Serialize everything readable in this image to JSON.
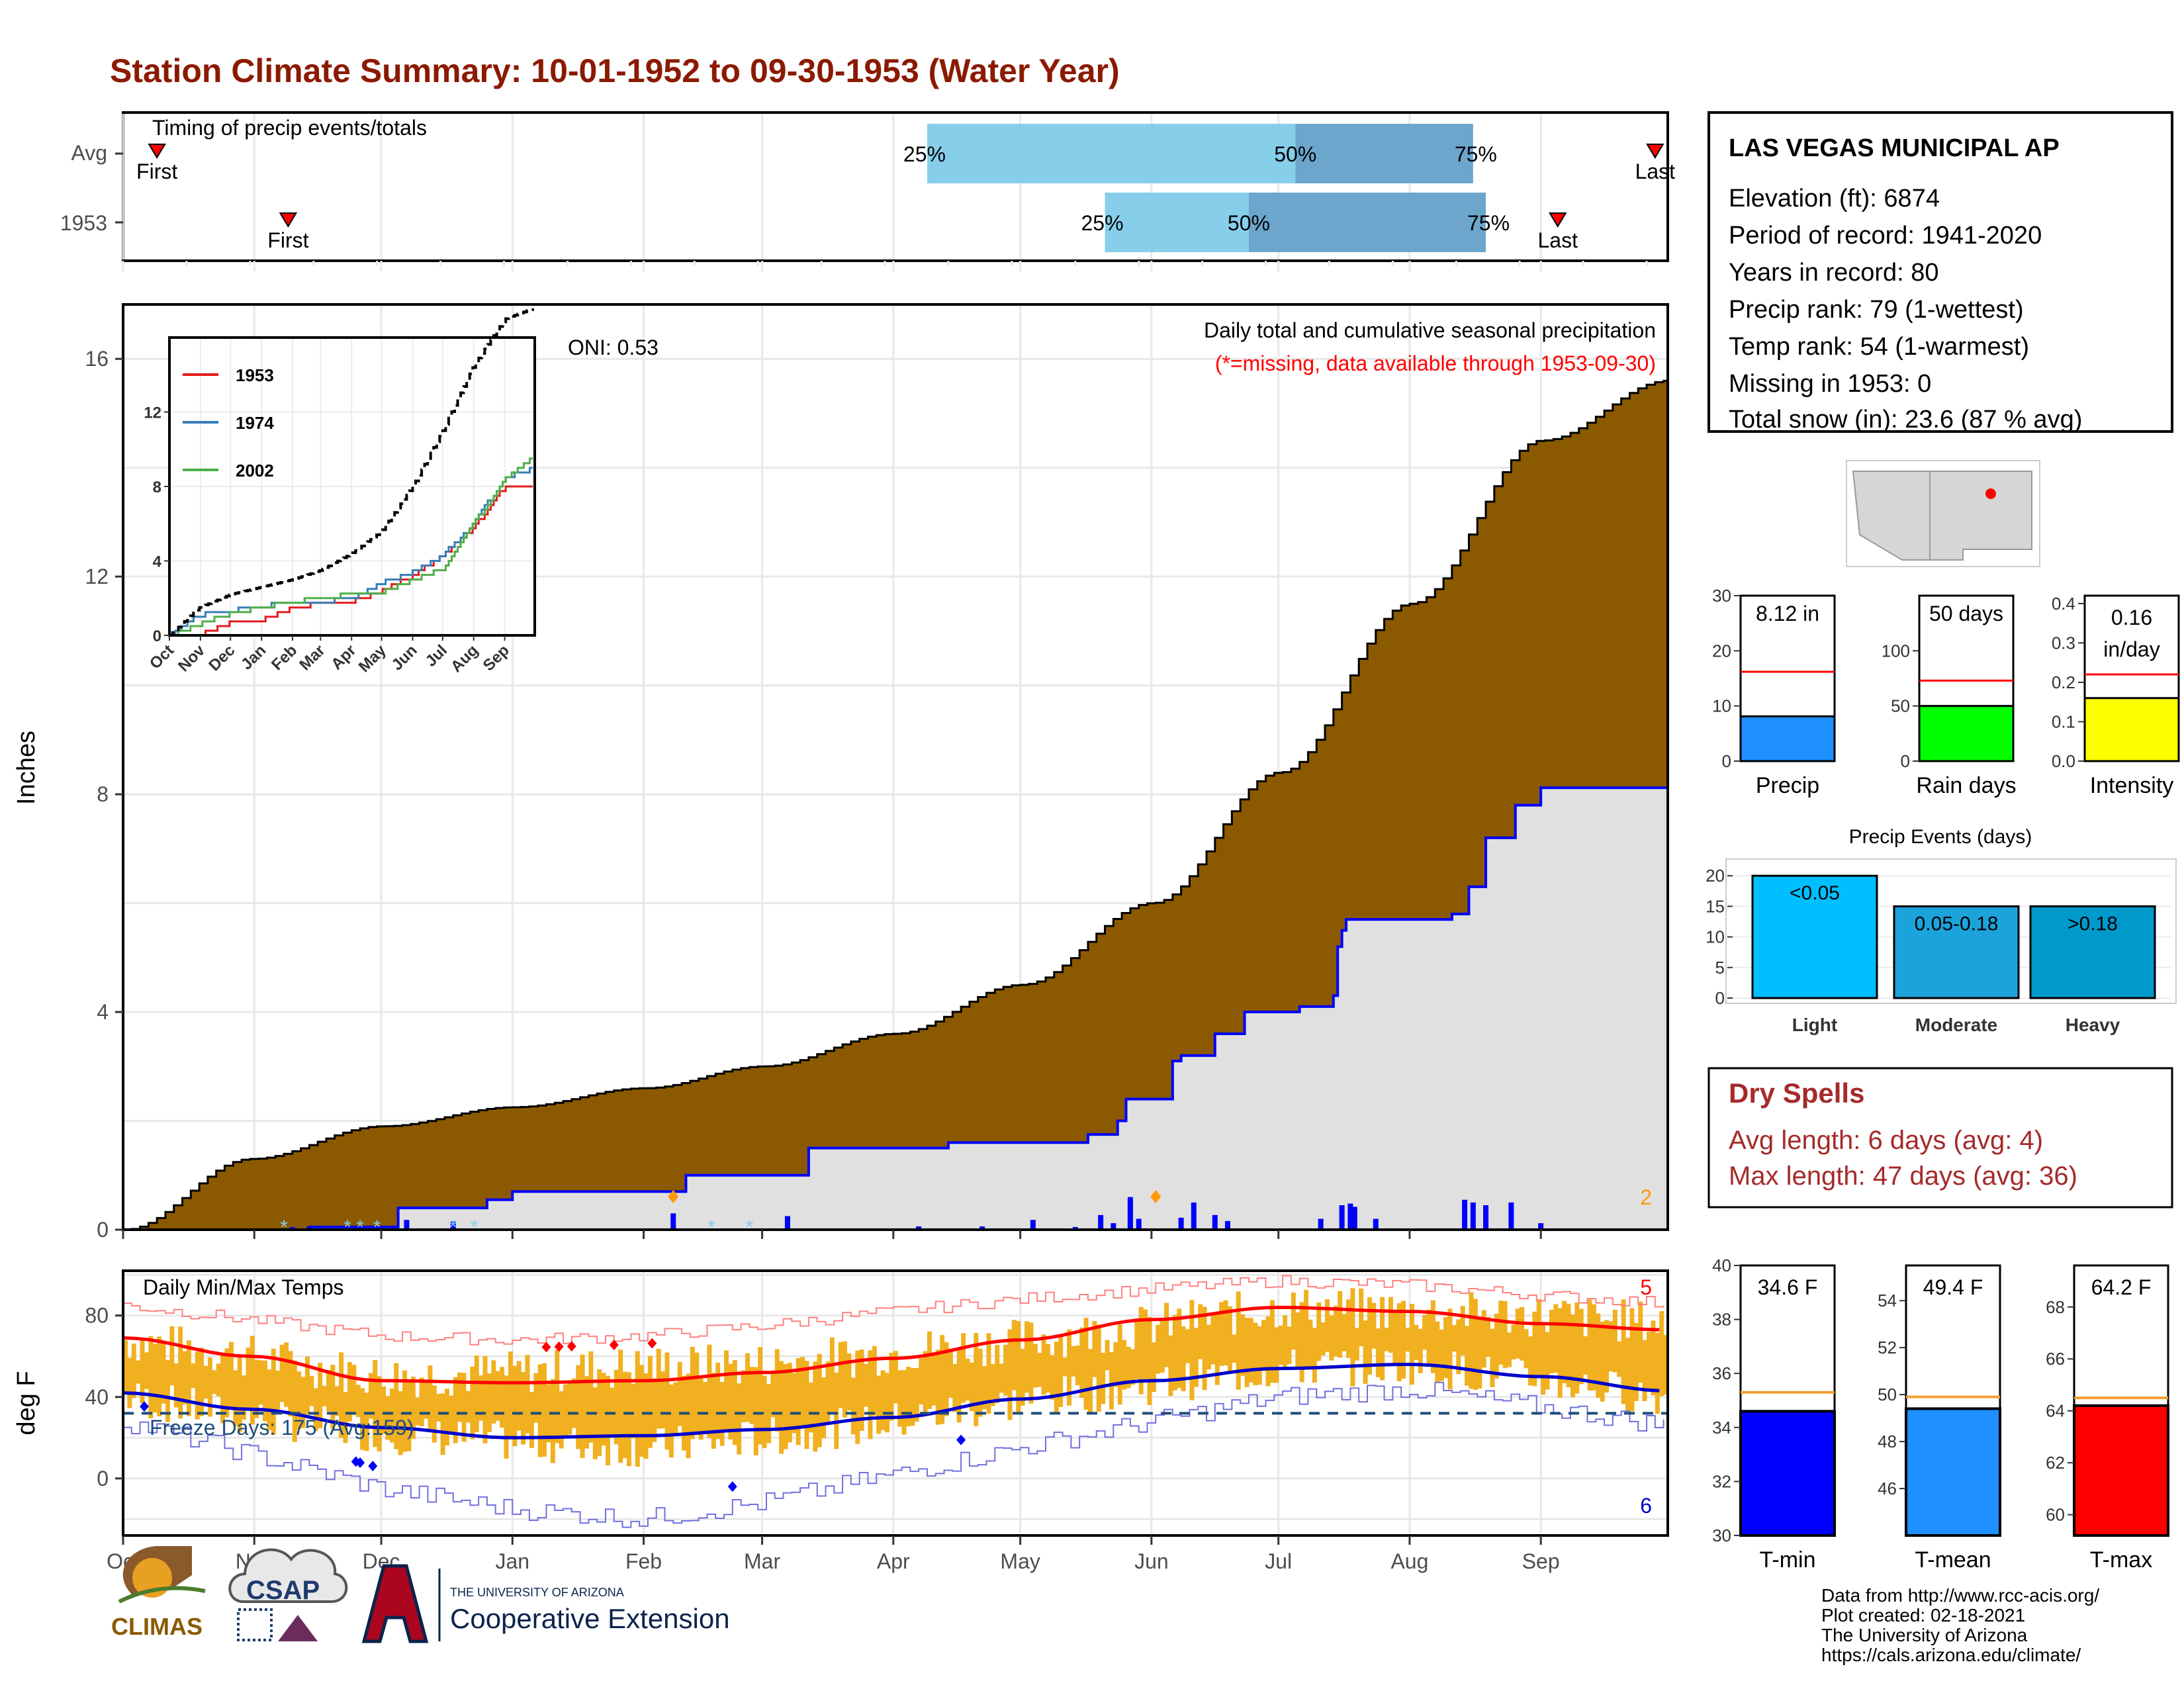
{
  "title": "Station Climate Summary: 10-01-1952 to 09-30-1953 (Water Year)",
  "timing": {
    "caption": "Timing of precip events/totals",
    "rows": [
      {
        "label": "Avg",
        "first_label": "First",
        "last_label": "Last",
        "first_day": 8,
        "last_day": 362,
        "p25": 190,
        "p50": 277,
        "p75": 319,
        "p25_label": "25%",
        "p50_label": "50%",
        "p75_label": "75%"
      },
      {
        "label": "1953",
        "first_label": "First",
        "last_label": "Last",
        "first_day": 39,
        "last_day": 339,
        "p25": 232,
        "p50": 266,
        "p75": 322,
        "p25_label": "25%",
        "p50_label": "50%",
        "p75_label": "75%"
      }
    ]
  },
  "precip_panel": {
    "ylabel": "Inches",
    "caption": "Daily total and cumulative seasonal precipitation",
    "missing_note": "(*=missing, data available through 1953-09-30)",
    "oni": "ONI: 0.53",
    "corner_count": "2",
    "y_ticks": [
      "0",
      "4",
      "8",
      "12",
      "16"
    ],
    "colors": {
      "avg_fill": "#8B5A00",
      "obs_fill": "#e0e0e0",
      "obs_line": "#0000ff",
      "bars": "#0000ff",
      "snow": "#87ceeb",
      "marker": "#ff9900"
    }
  },
  "inset": {
    "legend": [
      "1953",
      "1974",
      "2002"
    ],
    "legend_colors": [
      "#e41a1c",
      "#377eb8",
      "#4daf4a"
    ],
    "y_ticks": [
      "0",
      "4",
      "8",
      "12"
    ],
    "x_ticks": [
      "Oct",
      "Nov",
      "Dec",
      "Jan",
      "Feb",
      "Mar",
      "Apr",
      "May",
      "Jun",
      "Jul",
      "Aug",
      "Sep"
    ]
  },
  "temp_panel": {
    "ylabel": "deg F",
    "caption": "Daily Min/Max Temps",
    "freeze_text": "Freeze Days: 175 (Avg:159)",
    "top_count": "5",
    "bottom_count": "6",
    "y_ticks": [
      "0",
      "40",
      "80"
    ],
    "colors": {
      "bars": "#f0b020",
      "max_line": "#ff0000",
      "min_line": "#0000cc",
      "freeze": "#1f4e79"
    }
  },
  "x_months": [
    "Oct",
    "Nov",
    "Dec",
    "Jan",
    "Feb",
    "Mar",
    "Apr",
    "May",
    "Jun",
    "Jul",
    "Aug",
    "Sep"
  ],
  "station": {
    "name": "LAS VEGAS MUNICIPAL AP",
    "lines": [
      "Elevation (ft): 6874",
      "Period of record: 1941-2020",
      "Years in record: 80",
      "Precip rank: 79 (1-wettest)",
      "Temp rank: 54 (1-warmest)",
      "Missing in 1953: 0",
      "Total snow (in): 23.6 (87 % avg)"
    ]
  },
  "mini_bars": [
    {
      "name": "Precip",
      "value_label": "8.12 in",
      "value": 8.12,
      "avg": 16.2,
      "ymax": 30,
      "ticks": [
        "0",
        "10",
        "20",
        "30"
      ],
      "tick_values": [
        0,
        10,
        20,
        30
      ],
      "color": "#1e90ff"
    },
    {
      "name": "Rain days",
      "value_label": "50 days",
      "value": 50,
      "avg": 73,
      "ymax": 150,
      "ticks": [
        "0",
        "50",
        "100"
      ],
      "tick_values": [
        0,
        50,
        100
      ],
      "color": "#00ff00"
    },
    {
      "name": "Intensity",
      "value_label": "0.16 in/day",
      "value": 0.16,
      "avg": 0.22,
      "ymax": 0.42,
      "ticks": [
        "0.0",
        "0.1",
        "0.2",
        "0.3",
        "0.4"
      ],
      "tick_values": [
        0,
        0.1,
        0.2,
        0.3,
        0.4
      ],
      "color": "#ffff00"
    }
  ],
  "precip_events": {
    "title": "Precip Events (days)",
    "y_ticks": [
      "0",
      "5",
      "10",
      "15",
      "20"
    ],
    "bars": [
      {
        "name": "Light",
        "label": "<0.05",
        "value": 20,
        "color": "#00bfff"
      },
      {
        "name": "Moderate",
        "label": "0.05-0.18",
        "value": 15,
        "color": "#1ca3dc"
      },
      {
        "name": "Heavy",
        "label": ">0.18",
        "value": 15,
        "color": "#0099cc"
      }
    ]
  },
  "dry_spells": {
    "title": "Dry Spells",
    "avg_line": "Avg length: 6 days (avg: 4)",
    "max_line": "Max length: 47 days (avg: 36)"
  },
  "temp_bars": [
    {
      "name": "T-min",
      "value_label": "34.6 F",
      "value": 34.6,
      "avg": 35.3,
      "ymin": 30,
      "ymax": 40,
      "ticks": [
        "30",
        "32",
        "34",
        "36",
        "38",
        "40"
      ],
      "tick_values": [
        30,
        32,
        34,
        36,
        38,
        40
      ],
      "color": "#0000ff"
    },
    {
      "name": "T-mean",
      "value_label": "49.4 F",
      "value": 49.4,
      "avg": 49.9,
      "ymin": 44,
      "ymax": 55.5,
      "ticks": [
        "46",
        "48",
        "50",
        "52",
        "54"
      ],
      "tick_values": [
        46,
        48,
        50,
        52,
        54
      ],
      "color": "#1e90ff"
    },
    {
      "name": "T-max",
      "value_label": "64.2 F",
      "value": 64.2,
      "avg": 64.5,
      "ymin": 59.2,
      "ymax": 69.6,
      "ticks": [
        "60",
        "62",
        "64",
        "66",
        "68"
      ],
      "tick_values": [
        60,
        62,
        64,
        66,
        68
      ],
      "color": "#ff0000"
    }
  ],
  "footer": {
    "credits": [
      "Data from http://www.rcc-acis.org/",
      "Plot created: 02-18-2021",
      "The University of Arizona",
      "https://cals.arizona.edu/climate/"
    ],
    "logo_climas": "CLIMAS",
    "logo_csap": "CSAP",
    "ua_small": "THE UNIVERSITY OF ARIZONA",
    "ua_big": "Cooperative Extension"
  },
  "chart_data": {
    "type": "area",
    "x_unit": "day of water year (1 = Oct 1)",
    "months": [
      "Oct",
      "Nov",
      "Dec",
      "Jan",
      "Feb",
      "Mar",
      "Apr",
      "May",
      "Jun",
      "Jul",
      "Aug",
      "Sep"
    ],
    "ylabel": "Inches",
    "ylim": [
      0,
      17
    ],
    "avg_cumulative": {
      "x": [
        0,
        30,
        61,
        92,
        123,
        151,
        182,
        212,
        243,
        273,
        304,
        335,
        365
      ],
      "y": [
        0,
        1.3,
        1.9,
        2.25,
        2.6,
        3.0,
        3.6,
        4.5,
        6.0,
        8.4,
        11.5,
        14.5,
        15.6
      ]
    },
    "obs_cumulative": {
      "x": [
        0,
        40,
        44,
        65,
        86,
        92,
        130,
        133,
        162,
        195,
        228,
        235,
        237,
        238,
        248,
        250,
        258,
        265,
        278,
        286,
        287,
        288,
        289,
        314,
        318,
        322,
        329,
        335,
        365
      ],
      "y": [
        0,
        0,
        0.05,
        0.4,
        0.55,
        0.7,
        0.7,
        1.0,
        1.5,
        1.6,
        1.75,
        2.0,
        2.4,
        2.4,
        3.1,
        3.2,
        3.6,
        4.0,
        4.1,
        4.3,
        5.2,
        5.5,
        5.7,
        5.8,
        6.3,
        7.2,
        7.8,
        8.12,
        8.12
      ]
    },
    "daily_bars": {
      "x": [
        40,
        44,
        67,
        78,
        130,
        157,
        188,
        203,
        215,
        225,
        231,
        234,
        238,
        238,
        240,
        250,
        253,
        258,
        261,
        283,
        288,
        290,
        291,
        296,
        317,
        319,
        322,
        328,
        335
      ],
      "y": [
        0.05,
        0.06,
        0.18,
        0.15,
        0.3,
        0.25,
        0.06,
        0.06,
        0.18,
        0.05,
        0.27,
        0.12,
        0.55,
        0.6,
        0.2,
        0.22,
        0.5,
        0.27,
        0.16,
        0.2,
        0.45,
        0.48,
        0.42,
        0.2,
        0.55,
        0.5,
        0.45,
        0.5,
        0.12
      ]
    },
    "snow_days": [
      38,
      53,
      56,
      60,
      78,
      83,
      139,
      148
    ],
    "inset_series": [
      {
        "name": "1953",
        "x": [
          0,
          30,
          61,
          92,
          123,
          151,
          182,
          212,
          243,
          273,
          304,
          335,
          365
        ],
        "y": [
          0,
          0.05,
          0.7,
          0.85,
          1.5,
          1.7,
          1.8,
          2.4,
          3.2,
          4.3,
          5.8,
          8.0,
          8.12
        ]
      },
      {
        "name": "1974",
        "x": [
          0,
          30,
          61,
          92,
          123,
          151,
          182,
          212,
          243,
          273,
          304,
          335,
          365
        ],
        "y": [
          0,
          1.1,
          1.3,
          1.6,
          1.7,
          1.8,
          2.0,
          2.8,
          3.4,
          4.3,
          6.0,
          8.5,
          9.0
        ]
      },
      {
        "name": "2002",
        "x": [
          0,
          30,
          61,
          92,
          123,
          151,
          182,
          212,
          243,
          273,
          304,
          335,
          365
        ],
        "y": [
          0,
          0.6,
          1.2,
          1.5,
          1.8,
          2.0,
          2.2,
          2.3,
          3.0,
          3.6,
          6.0,
          8.4,
          9.6
        ]
      },
      {
        "name": "avg",
        "x": [
          0,
          30,
          61,
          92,
          123,
          151,
          182,
          212,
          243,
          273,
          304,
          335,
          365
        ],
        "y": [
          0,
          1.5,
          2.2,
          2.6,
          3.0,
          3.5,
          4.4,
          5.6,
          8.0,
          11.0,
          14.5,
          17.0,
          17.6
        ]
      }
    ],
    "temps": {
      "ylim": [
        -28,
        102
      ],
      "freeze_line": 32,
      "avg_max": {
        "x": [
          0,
          30,
          61,
          92,
          123,
          151,
          182,
          212,
          243,
          273,
          304,
          335,
          365
        ],
        "y": [
          69,
          60,
          48,
          47,
          48,
          52,
          59,
          68,
          78,
          84,
          82,
          76,
          73
        ]
      },
      "avg_min": {
        "x": [
          0,
          30,
          61,
          92,
          123,
          151,
          182,
          212,
          243,
          273,
          304,
          335,
          365
        ],
        "y": [
          42,
          34,
          25,
          20,
          21,
          24,
          30,
          39,
          48,
          54,
          56,
          50,
          43
        ]
      },
      "rec_max": {
        "x": [
          0,
          30,
          61,
          92,
          123,
          151,
          182,
          212,
          243,
          273,
          304,
          335,
          365
        ],
        "y": [
          85,
          78,
          70,
          68,
          70,
          75,
          82,
          88,
          93,
          97,
          95,
          90,
          86
        ]
      },
      "rec_min": {
        "x": [
          0,
          30,
          61,
          92,
          123,
          151,
          182,
          212,
          243,
          273,
          304,
          335,
          365
        ],
        "y": [
          28,
          12,
          -5,
          -15,
          -20,
          -12,
          2,
          15,
          28,
          40,
          44,
          35,
          26
        ]
      },
      "obs_max": {
        "x": [
          0,
          30,
          61,
          92,
          123,
          151,
          182,
          212,
          243,
          273,
          304,
          335,
          365
        ],
        "y": [
          68,
          60,
          50,
          52,
          55,
          56,
          62,
          68,
          75,
          84,
          82,
          80,
          76
        ]
      },
      "obs_min": {
        "x": [
          0,
          30,
          61,
          92,
          123,
          151,
          182,
          212,
          243,
          273,
          304,
          335,
          365
        ],
        "y": [
          40,
          30,
          22,
          18,
          15,
          20,
          28,
          38,
          46,
          54,
          56,
          48,
          40
        ]
      },
      "record_high_days": [
        100,
        103,
        106,
        116,
        125
      ],
      "record_low_days": [
        5,
        55,
        56,
        59,
        144,
        198
      ]
    }
  }
}
